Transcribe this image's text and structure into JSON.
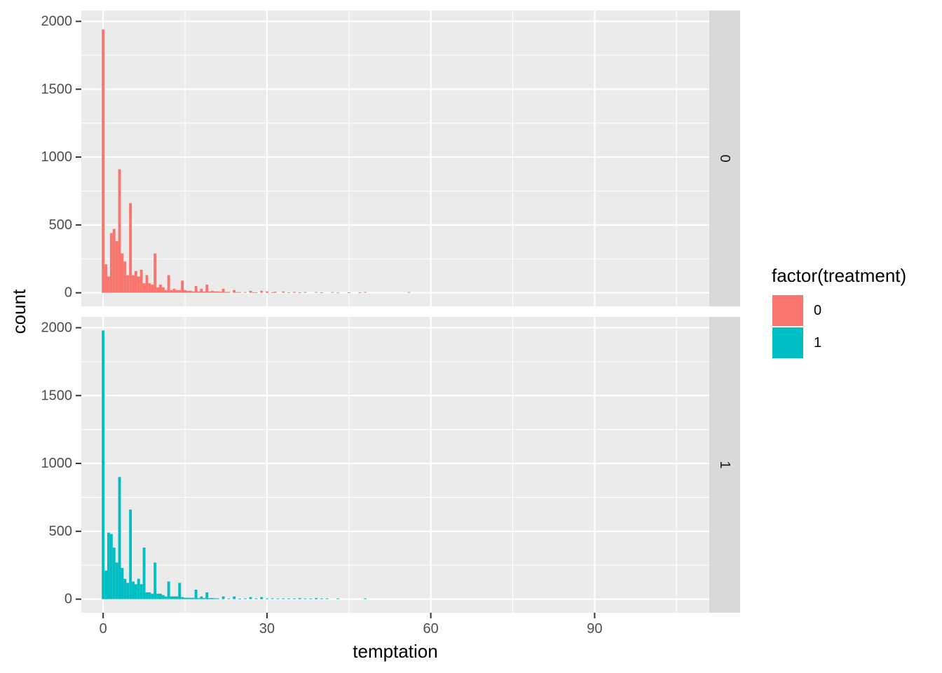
{
  "colors": {
    "treatment_0": "#F8766D",
    "treatment_1": "#00BFC4"
  },
  "chart_data": {
    "type": "bar",
    "subtype": "faceted histogram (facet rows by treatment)",
    "xlabel": "temptation",
    "ylabel": "count",
    "xlim": [
      -4,
      111
    ],
    "ylim": [
      -100,
      2080
    ],
    "x_ticks": [
      0,
      30,
      60,
      90
    ],
    "y_ticks": [
      0,
      500,
      1000,
      1500,
      2000
    ],
    "bin_width": 0.5,
    "grid": true,
    "legend": {
      "title": "factor(treatment)",
      "position": "right",
      "items": [
        {
          "label": "0",
          "color": "#F8766D"
        },
        {
          "label": "1",
          "color": "#00BFC4"
        }
      ]
    },
    "facets": [
      {
        "strip": "0",
        "color": "#F8766D",
        "bins": [
          [
            0,
            1940
          ],
          [
            0.5,
            210
          ],
          [
            1,
            120
          ],
          [
            1.5,
            440
          ],
          [
            2,
            470
          ],
          [
            2.5,
            380
          ],
          [
            3,
            910
          ],
          [
            3.5,
            290
          ],
          [
            4,
            230
          ],
          [
            4.5,
            130
          ],
          [
            5,
            660
          ],
          [
            5.5,
            130
          ],
          [
            6,
            160
          ],
          [
            6.5,
            120
          ],
          [
            7,
            170
          ],
          [
            7.5,
            70
          ],
          [
            8,
            130
          ],
          [
            8.5,
            70
          ],
          [
            9,
            60
          ],
          [
            9.5,
            290
          ],
          [
            10,
            40
          ],
          [
            10.5,
            60
          ],
          [
            11,
            40
          ],
          [
            11.5,
            20
          ],
          [
            12,
            130
          ],
          [
            12.5,
            20
          ],
          [
            13,
            30
          ],
          [
            13.5,
            20
          ],
          [
            14,
            20
          ],
          [
            14.5,
            90
          ],
          [
            15,
            20
          ],
          [
            15.5,
            15
          ],
          [
            16,
            15
          ],
          [
            16.5,
            10
          ],
          [
            17,
            50
          ],
          [
            17.5,
            10
          ],
          [
            18,
            30
          ],
          [
            18.5,
            10
          ],
          [
            19,
            60
          ],
          [
            19.5,
            10
          ],
          [
            20,
            15
          ],
          [
            20.5,
            10
          ],
          [
            21,
            10
          ],
          [
            21.5,
            8
          ],
          [
            22,
            30
          ],
          [
            22.5,
            6
          ],
          [
            23,
            6
          ],
          [
            24,
            20
          ],
          [
            24.5,
            5
          ],
          [
            25,
            5
          ],
          [
            26,
            5
          ],
          [
            27,
            15
          ],
          [
            27.5,
            4
          ],
          [
            28,
            4
          ],
          [
            29,
            15
          ],
          [
            30,
            10
          ],
          [
            31,
            4
          ],
          [
            31.5,
            8
          ],
          [
            33,
            10
          ],
          [
            34,
            3
          ],
          [
            35,
            6
          ],
          [
            36,
            3
          ],
          [
            37,
            5
          ],
          [
            39,
            5
          ],
          [
            40,
            3
          ],
          [
            42,
            5
          ],
          [
            43,
            2
          ],
          [
            45,
            3
          ],
          [
            47,
            3
          ],
          [
            48,
            5
          ],
          [
            56,
            5
          ]
        ]
      },
      {
        "strip": "1",
        "color": "#00BFC4",
        "bins": [
          [
            0,
            1980
          ],
          [
            0.5,
            210
          ],
          [
            1,
            490
          ],
          [
            1.5,
            480
          ],
          [
            2,
            380
          ],
          [
            2.5,
            270
          ],
          [
            3,
            900
          ],
          [
            3.5,
            230
          ],
          [
            4,
            150
          ],
          [
            4.5,
            120
          ],
          [
            5,
            660
          ],
          [
            5.5,
            130
          ],
          [
            6,
            110
          ],
          [
            6.5,
            150
          ],
          [
            7,
            110
          ],
          [
            7.5,
            380
          ],
          [
            8,
            50
          ],
          [
            8.5,
            50
          ],
          [
            9,
            40
          ],
          [
            9.5,
            270
          ],
          [
            10,
            40
          ],
          [
            10.5,
            40
          ],
          [
            11,
            30
          ],
          [
            11.5,
            20
          ],
          [
            12,
            130
          ],
          [
            12.5,
            20
          ],
          [
            13,
            20
          ],
          [
            13.5,
            20
          ],
          [
            14,
            120
          ],
          [
            14.5,
            15
          ],
          [
            15,
            10
          ],
          [
            15.5,
            10
          ],
          [
            16,
            10
          ],
          [
            16.5,
            10
          ],
          [
            17,
            70
          ],
          [
            17.5,
            8
          ],
          [
            18,
            20
          ],
          [
            18.5,
            8
          ],
          [
            19,
            50
          ],
          [
            19.5,
            8
          ],
          [
            20,
            8
          ],
          [
            20.5,
            6
          ],
          [
            21,
            6
          ],
          [
            22,
            20
          ],
          [
            23,
            5
          ],
          [
            24,
            20
          ],
          [
            25,
            4
          ],
          [
            26,
            5
          ],
          [
            27,
            15
          ],
          [
            28,
            5
          ],
          [
            29,
            15
          ],
          [
            30,
            5
          ],
          [
            31,
            6
          ],
          [
            32,
            5
          ],
          [
            33,
            5
          ],
          [
            34,
            5
          ],
          [
            35,
            5
          ],
          [
            36,
            8
          ],
          [
            37,
            5
          ],
          [
            38,
            5
          ],
          [
            39,
            8
          ],
          [
            40,
            5
          ],
          [
            41,
            5
          ],
          [
            43,
            5
          ],
          [
            48,
            5
          ]
        ]
      }
    ]
  }
}
